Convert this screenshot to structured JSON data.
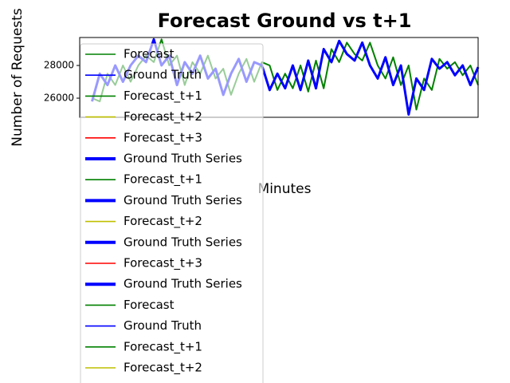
{
  "chart_data": {
    "type": "line",
    "title": "Forecast Ground vs t+1",
    "xlabel": "Minutes",
    "ylabel": "Number of Requests",
    "ylim": [
      24830,
      29710
    ],
    "yticks": [
      26000,
      28000
    ],
    "series": [
      {
        "name": "Forecast",
        "color": "#008000",
        "values": [
          26000,
          25800,
          27500,
          26800,
          28000,
          27000,
          28000,
          28600,
          28200,
          29600,
          28000,
          28600,
          26800,
          28200,
          27500,
          28600,
          27200,
          27800,
          26200,
          27500,
          28400,
          27000,
          28200,
          28000,
          26500,
          27500,
          26600,
          28000,
          26400,
          28300,
          26600,
          29000,
          28200,
          29400,
          28700,
          28300,
          29400,
          28000,
          27200,
          28500,
          26800,
          28000,
          25300,
          27200,
          26500,
          28400,
          27800,
          28200,
          27400,
          28000,
          26800
        ]
      },
      {
        "name": "Ground Truth",
        "color": "#0000ff",
        "values": [
          25800,
          27500,
          26800,
          28000,
          27000,
          28000,
          28600,
          28200,
          29600,
          28000,
          28600,
          26800,
          28200,
          27500,
          28600,
          27200,
          27800,
          26200,
          27500,
          28400,
          27000,
          28200,
          28000,
          26500,
          27500,
          26600,
          28000,
          26500,
          28300,
          26600,
          29000,
          28200,
          29500,
          28700,
          28300,
          29400,
          28000,
          27200,
          28500,
          26800,
          28000,
          25000,
          27200,
          26500,
          28400,
          27800,
          28200,
          27400,
          28000,
          26800,
          27900
        ]
      }
    ],
    "legend": [
      {
        "name": "Forecast",
        "color": "#008000"
      },
      {
        "name": "Ground Truth",
        "color": "#0000ff"
      },
      {
        "name": "Forecast_t+1",
        "color": "#008000"
      },
      {
        "name": "Forecast_t+2",
        "color": "#bfbf00"
      },
      {
        "name": "Forecast_t+3",
        "color": "#ff0000"
      },
      {
        "name": "Ground Truth Series",
        "color": "#0000ff",
        "bold": true
      },
      {
        "name": "Forecast_t+1",
        "color": "#008000"
      },
      {
        "name": "Ground Truth Series",
        "color": "#0000ff",
        "bold": true
      },
      {
        "name": "Forecast_t+2",
        "color": "#bfbf00"
      },
      {
        "name": "Ground Truth Series",
        "color": "#0000ff",
        "bold": true
      },
      {
        "name": "Forecast_t+3",
        "color": "#ff0000"
      },
      {
        "name": "Ground Truth Series",
        "color": "#0000ff",
        "bold": true
      },
      {
        "name": "Forecast",
        "color": "#008000"
      },
      {
        "name": "Ground Truth",
        "color": "#0000ff"
      },
      {
        "name": "Forecast_t+1",
        "color": "#008000"
      },
      {
        "name": "Forecast_t+2",
        "color": "#bfbf00"
      }
    ]
  }
}
